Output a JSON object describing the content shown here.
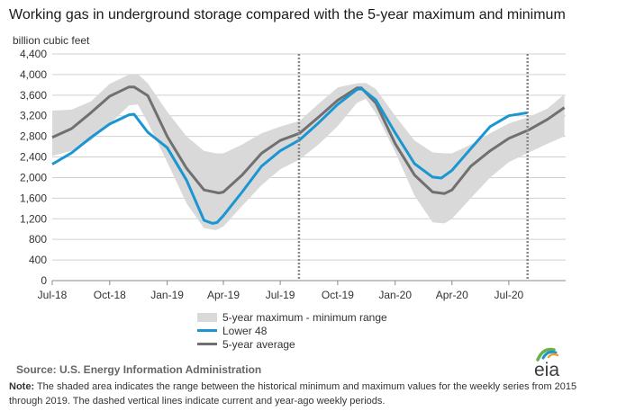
{
  "title": "Working gas in underground storage compared with the 5-year maximum and minimum",
  "unit_label": "billion cubic feet",
  "legend": {
    "range": "5-year maximum - minimum range",
    "lower48": "Lower 48",
    "avg": "5-year average"
  },
  "source": "Source:  U.S. Energy Information Administration",
  "note_label": "Note:",
  "note_text": " The shaded area indicates the range between the historical minimum and maximum values for the weekly series from 2015 through 2019. The dashed vertical lines indicate current and year-ago weekly periods.",
  "logo_text": "eia",
  "colors": {
    "band": "#d9d9d9",
    "lower48": "#1a96d2",
    "avg": "#707070",
    "grid": "#d0d0d0",
    "dash": "#888888",
    "logo_text": "#3c3c3c",
    "logo_green": "#6ab04c",
    "logo_blue": "#1a96d2",
    "logo_orange": "#f0a030"
  },
  "chart_data": {
    "type": "area",
    "x_start": "2018-07-01",
    "x_end": "2020-09-30",
    "ylim": [
      0,
      4400
    ],
    "ytick_step": 400,
    "yticks": [
      "0",
      "400",
      "800",
      "1,200",
      "1,600",
      "2,000",
      "2,400",
      "2,800",
      "3,200",
      "3,600",
      "4,000",
      "4,400"
    ],
    "xticks": [
      {
        "label": "Jul-18",
        "date": "2018-07-01"
      },
      {
        "label": "Oct-18",
        "date": "2018-10-01"
      },
      {
        "label": "Jan-19",
        "date": "2019-01-01"
      },
      {
        "label": "Apr-19",
        "date": "2019-04-01"
      },
      {
        "label": "Jul-19",
        "date": "2019-07-01"
      },
      {
        "label": "Oct-19",
        "date": "2019-10-01"
      },
      {
        "label": "Jan-20",
        "date": "2020-01-01"
      },
      {
        "label": "Apr-20",
        "date": "2020-04-01"
      },
      {
        "label": "Jul-20",
        "date": "2020-07-01"
      }
    ],
    "dashed_lines": [
      "2019-07-31",
      "2020-07-31"
    ],
    "grid": true,
    "legend_position": "bottom",
    "series": [
      {
        "name": "5-year maximum - minimum range",
        "kind": "band",
        "x": [
          "2018-07-01",
          "2018-08-01",
          "2018-09-01",
          "2018-10-01",
          "2018-11-01",
          "2018-11-15",
          "2018-12-01",
          "2019-01-01",
          "2019-02-01",
          "2019-03-01",
          "2019-03-20",
          "2019-04-01",
          "2019-05-01",
          "2019-06-01",
          "2019-07-01",
          "2019-08-01",
          "2019-09-01",
          "2019-10-01",
          "2019-11-01",
          "2019-11-15",
          "2019-12-01",
          "2020-01-01",
          "2020-02-01",
          "2020-03-01",
          "2020-03-20",
          "2020-04-01",
          "2020-05-01",
          "2020-06-01",
          "2020-07-01",
          "2020-08-01",
          "2020-09-01",
          "2020-09-28"
        ],
        "upper": [
          3300,
          3320,
          3480,
          3820,
          4000,
          4010,
          3830,
          3280,
          2800,
          2520,
          2470,
          2470,
          2640,
          2860,
          2990,
          3100,
          3440,
          3750,
          3830,
          3840,
          3720,
          3200,
          2720,
          2490,
          2470,
          2470,
          2640,
          2860,
          3050,
          3170,
          3340,
          3620
        ],
        "lower": [
          2420,
          2520,
          2720,
          3040,
          3400,
          3420,
          3070,
          2300,
          1500,
          1020,
          980,
          1050,
          1450,
          1850,
          2160,
          2350,
          2650,
          3000,
          3450,
          3530,
          3250,
          2500,
          1650,
          1130,
          1110,
          1200,
          1600,
          2000,
          2300,
          2480,
          2660,
          2800
        ]
      },
      {
        "name": "Lower 48",
        "kind": "line",
        "x": [
          "2018-07-01",
          "2018-08-01",
          "2018-09-01",
          "2018-10-01",
          "2018-11-01",
          "2018-11-09",
          "2018-12-01",
          "2019-01-01",
          "2019-02-01",
          "2019-03-01",
          "2019-03-15",
          "2019-03-22",
          "2019-04-01",
          "2019-05-01",
          "2019-06-01",
          "2019-07-01",
          "2019-08-01",
          "2019-09-01",
          "2019-10-01",
          "2019-11-01",
          "2019-11-08",
          "2019-12-01",
          "2020-01-01",
          "2020-02-01",
          "2020-03-01",
          "2020-03-15",
          "2020-04-01",
          "2020-05-01",
          "2020-06-01",
          "2020-07-01",
          "2020-07-31"
        ],
        "values": [
          2260,
          2480,
          2780,
          3040,
          3220,
          3230,
          2880,
          2580,
          1950,
          1170,
          1110,
          1130,
          1260,
          1720,
          2220,
          2520,
          2730,
          3070,
          3420,
          3710,
          3730,
          3510,
          2870,
          2270,
          2010,
          1990,
          2140,
          2560,
          2990,
          3200,
          3260
        ]
      },
      {
        "name": "5-year average",
        "kind": "line",
        "x": [
          "2018-07-01",
          "2018-08-01",
          "2018-09-01",
          "2018-10-01",
          "2018-11-01",
          "2018-11-09",
          "2018-12-01",
          "2019-01-01",
          "2019-02-01",
          "2019-03-01",
          "2019-03-25",
          "2019-04-01",
          "2019-05-01",
          "2019-06-01",
          "2019-07-01",
          "2019-08-01",
          "2019-09-01",
          "2019-10-01",
          "2019-11-01",
          "2019-11-08",
          "2019-12-01",
          "2020-01-01",
          "2020-02-01",
          "2020-03-01",
          "2020-03-20",
          "2020-04-01",
          "2020-05-01",
          "2020-06-01",
          "2020-07-01",
          "2020-08-01",
          "2020-09-01",
          "2020-09-28"
        ],
        "values": [
          2780,
          2950,
          3260,
          3580,
          3760,
          3760,
          3590,
          2800,
          2180,
          1760,
          1700,
          1720,
          2050,
          2470,
          2720,
          2860,
          3180,
          3500,
          3740,
          3740,
          3450,
          2660,
          2050,
          1720,
          1690,
          1760,
          2220,
          2520,
          2760,
          2920,
          3130,
          3360
        ]
      }
    ]
  }
}
